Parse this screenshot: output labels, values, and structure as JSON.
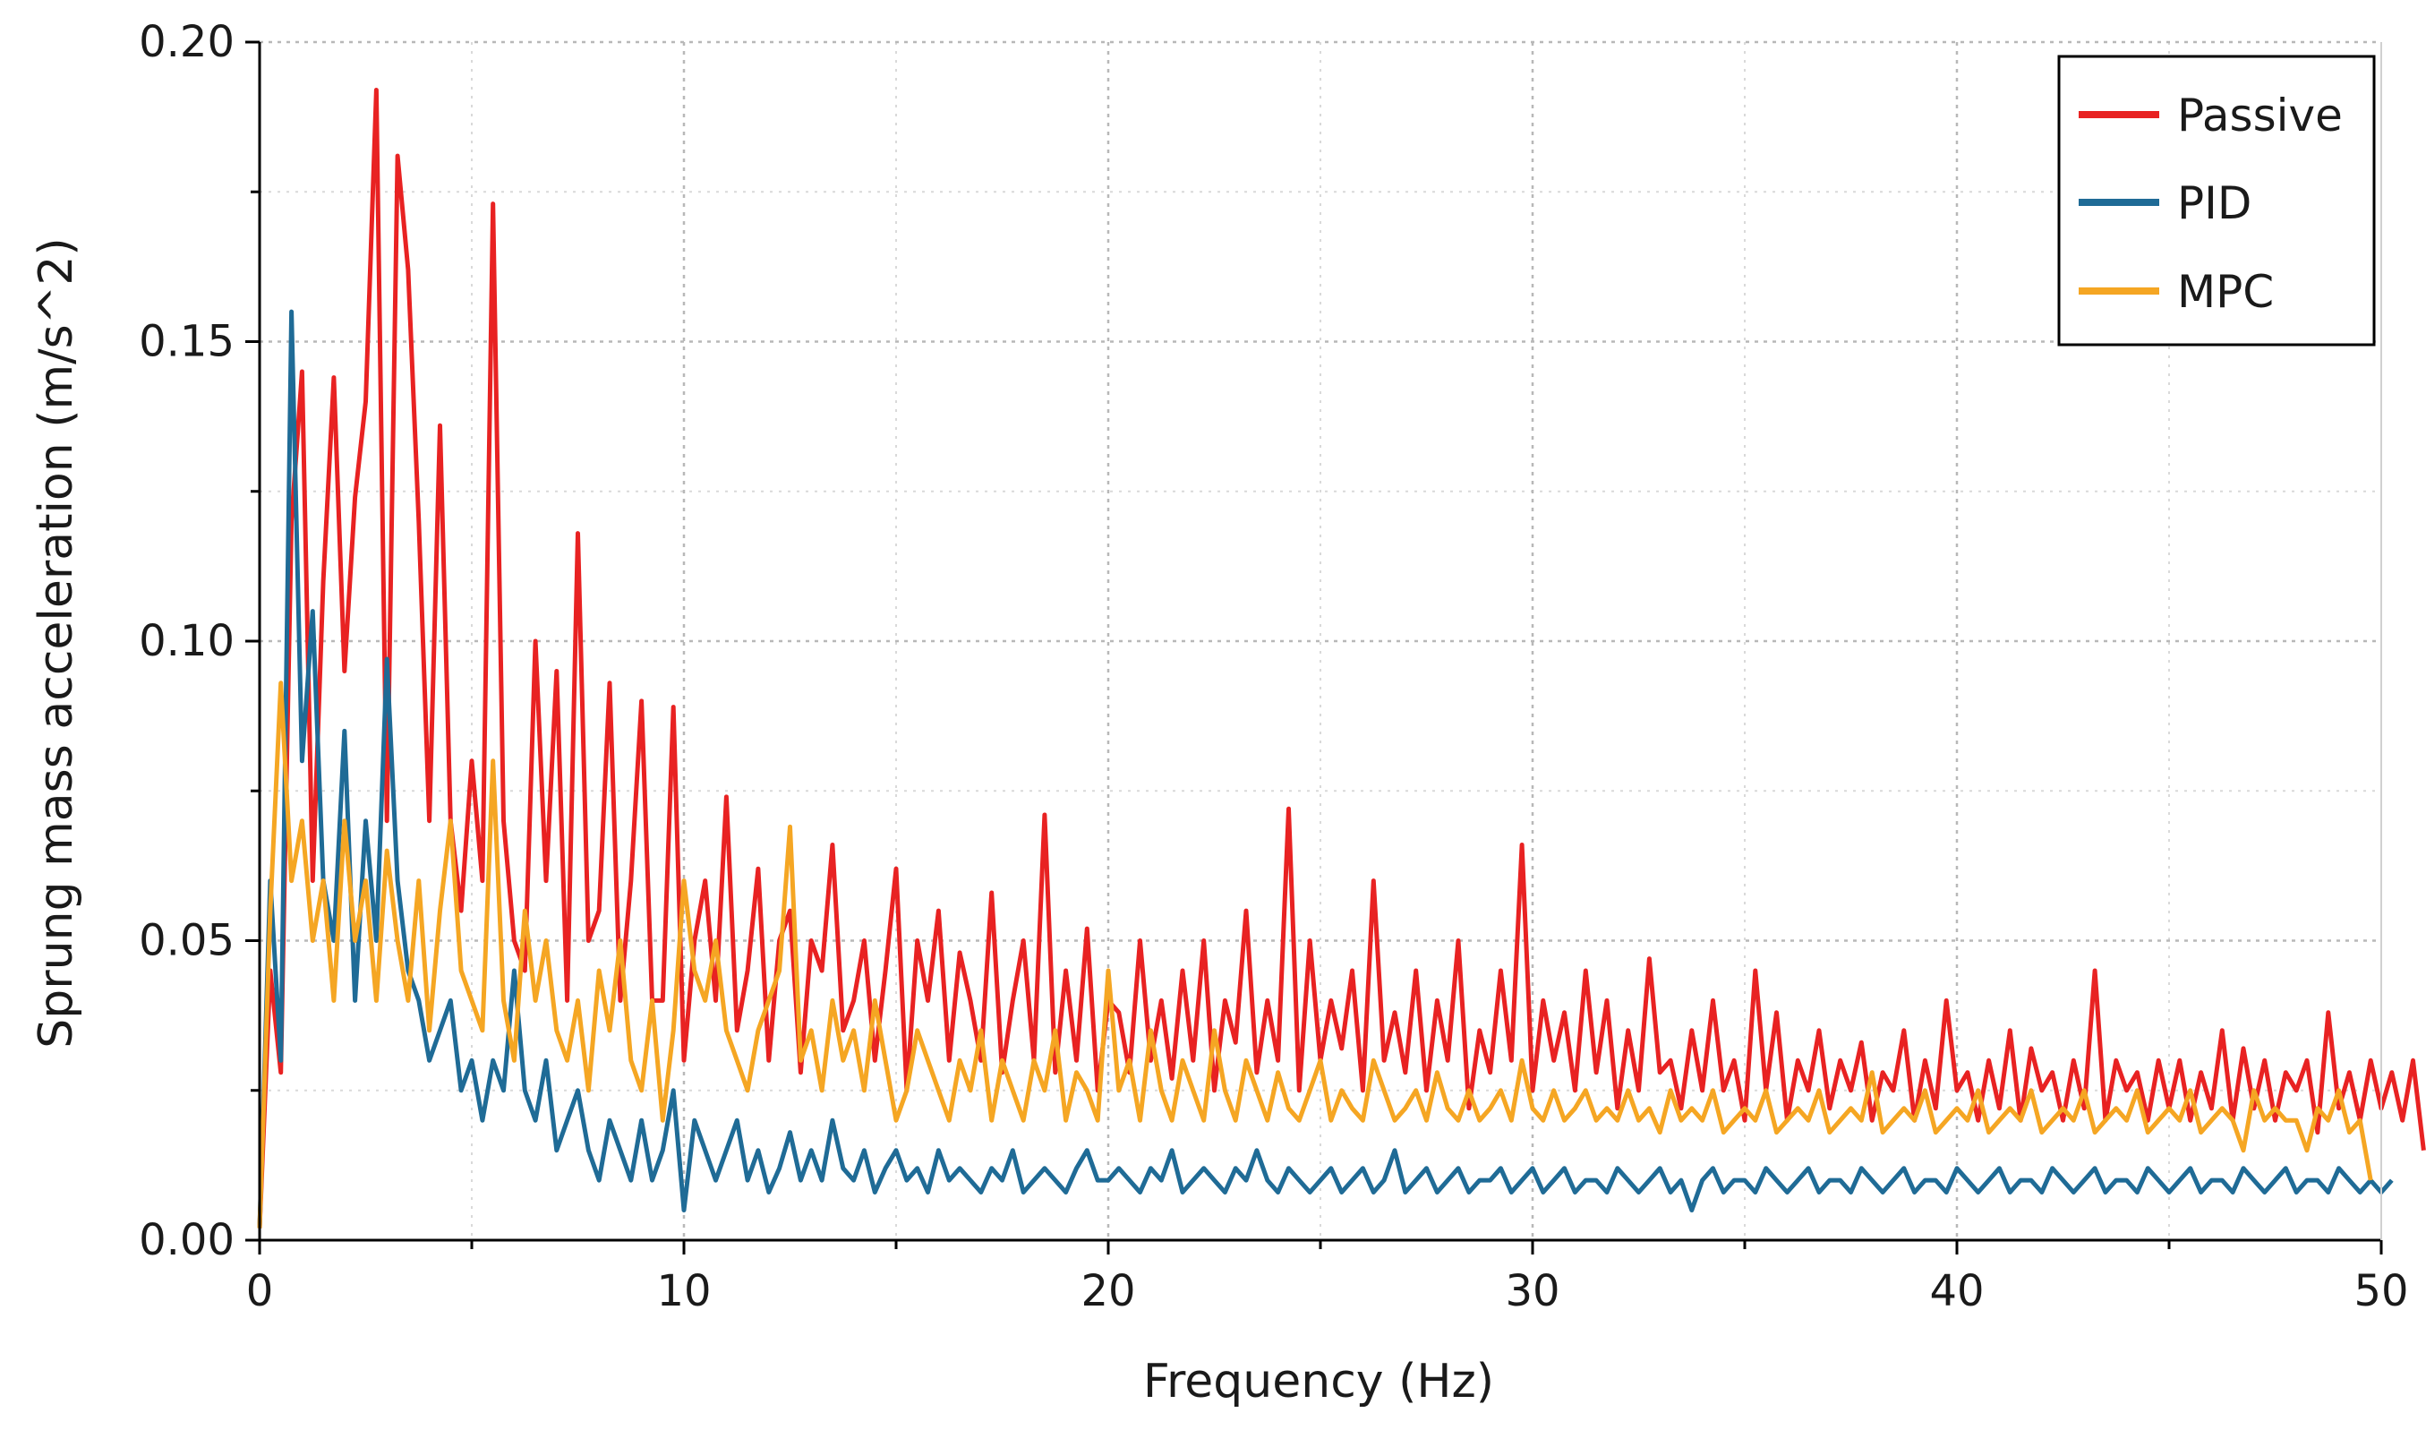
{
  "chart_data": {
    "type": "line",
    "title": "",
    "xlabel": "Frequency (Hz)",
    "ylabel": "Sprung mass acceleration (m/s^2)",
    "xlim": [
      0,
      50
    ],
    "ylim": [
      0,
      0.2
    ],
    "x_ticks": [
      "0",
      "10",
      "20",
      "30",
      "40",
      "50"
    ],
    "y_ticks": [
      "0.00",
      "0.05",
      "0.10",
      "0.15",
      "0.20"
    ],
    "grid": true,
    "legend_position": "top-right",
    "x_step": 0.25,
    "series": [
      {
        "name": "Passive",
        "color": "#e82222",
        "values": [
          0.002,
          0.045,
          0.028,
          0.12,
          0.145,
          0.06,
          0.11,
          0.144,
          0.095,
          0.124,
          0.14,
          0.192,
          0.07,
          0.181,
          0.162,
          0.12,
          0.07,
          0.136,
          0.07,
          0.055,
          0.08,
          0.06,
          0.173,
          0.07,
          0.05,
          0.045,
          0.1,
          0.06,
          0.095,
          0.04,
          0.118,
          0.05,
          0.055,
          0.093,
          0.04,
          0.06,
          0.09,
          0.04,
          0.04,
          0.089,
          0.03,
          0.05,
          0.06,
          0.04,
          0.074,
          0.035,
          0.045,
          0.062,
          0.03,
          0.05,
          0.055,
          0.028,
          0.05,
          0.045,
          0.066,
          0.035,
          0.04,
          0.05,
          0.03,
          0.045,
          0.062,
          0.025,
          0.05,
          0.04,
          0.055,
          0.03,
          0.048,
          0.04,
          0.03,
          0.058,
          0.028,
          0.04,
          0.05,
          0.03,
          0.071,
          0.028,
          0.045,
          0.03,
          0.052,
          0.025,
          0.04,
          0.038,
          0.028,
          0.05,
          0.03,
          0.04,
          0.027,
          0.045,
          0.03,
          0.05,
          0.025,
          0.04,
          0.033,
          0.055,
          0.028,
          0.04,
          0.03,
          0.072,
          0.025,
          0.05,
          0.03,
          0.04,
          0.032,
          0.045,
          0.025,
          0.06,
          0.03,
          0.038,
          0.028,
          0.045,
          0.025,
          0.04,
          0.03,
          0.05,
          0.022,
          0.035,
          0.028,
          0.045,
          0.03,
          0.066,
          0.025,
          0.04,
          0.03,
          0.038,
          0.025,
          0.045,
          0.028,
          0.04,
          0.022,
          0.035,
          0.025,
          0.047,
          0.028,
          0.03,
          0.022,
          0.035,
          0.025,
          0.04,
          0.025,
          0.03,
          0.02,
          0.045,
          0.025,
          0.038,
          0.02,
          0.03,
          0.025,
          0.035,
          0.022,
          0.03,
          0.025,
          0.033,
          0.02,
          0.028,
          0.025,
          0.035,
          0.02,
          0.03,
          0.022,
          0.04,
          0.025,
          0.028,
          0.02,
          0.03,
          0.022,
          0.035,
          0.02,
          0.032,
          0.025,
          0.028,
          0.02,
          0.03,
          0.022,
          0.045,
          0.02,
          0.03,
          0.025,
          0.028,
          0.02,
          0.03,
          0.022,
          0.03,
          0.02,
          0.028,
          0.022,
          0.035,
          0.02,
          0.032,
          0.022,
          0.03,
          0.02,
          0.028,
          0.025,
          0.03,
          0.018,
          0.038,
          0.022,
          0.028,
          0.02,
          0.03,
          0.022,
          0.028,
          0.02,
          0.03,
          0.015
        ]
      },
      {
        "name": "PID",
        "color": "#1f6b96",
        "values": [
          0.002,
          0.06,
          0.03,
          0.155,
          0.08,
          0.105,
          0.06,
          0.05,
          0.085,
          0.04,
          0.07,
          0.05,
          0.097,
          0.06,
          0.045,
          0.04,
          0.03,
          0.035,
          0.04,
          0.025,
          0.03,
          0.02,
          0.03,
          0.025,
          0.045,
          0.025,
          0.02,
          0.03,
          0.015,
          0.02,
          0.025,
          0.015,
          0.01,
          0.02,
          0.015,
          0.01,
          0.02,
          0.01,
          0.015,
          0.025,
          0.005,
          0.02,
          0.015,
          0.01,
          0.015,
          0.02,
          0.01,
          0.015,
          0.008,
          0.012,
          0.018,
          0.01,
          0.015,
          0.01,
          0.02,
          0.012,
          0.01,
          0.015,
          0.008,
          0.012,
          0.015,
          0.01,
          0.012,
          0.008,
          0.015,
          0.01,
          0.012,
          0.01,
          0.008,
          0.012,
          0.01,
          0.015,
          0.008,
          0.01,
          0.012,
          0.01,
          0.008,
          0.012,
          0.015,
          0.01,
          0.01,
          0.012,
          0.01,
          0.008,
          0.012,
          0.01,
          0.015,
          0.008,
          0.01,
          0.012,
          0.01,
          0.008,
          0.012,
          0.01,
          0.015,
          0.01,
          0.008,
          0.012,
          0.01,
          0.008,
          0.01,
          0.012,
          0.008,
          0.01,
          0.012,
          0.008,
          0.01,
          0.015,
          0.008,
          0.01,
          0.012,
          0.008,
          0.01,
          0.012,
          0.008,
          0.01,
          0.01,
          0.012,
          0.008,
          0.01,
          0.012,
          0.008,
          0.01,
          0.012,
          0.008,
          0.01,
          0.01,
          0.008,
          0.012,
          0.01,
          0.008,
          0.01,
          0.012,
          0.008,
          0.01,
          0.005,
          0.01,
          0.012,
          0.008,
          0.01,
          0.01,
          0.008,
          0.012,
          0.01,
          0.008,
          0.01,
          0.012,
          0.008,
          0.01,
          0.01,
          0.008,
          0.012,
          0.01,
          0.008,
          0.01,
          0.012,
          0.008,
          0.01,
          0.01,
          0.008,
          0.012,
          0.01,
          0.008,
          0.01,
          0.012,
          0.008,
          0.01,
          0.01,
          0.008,
          0.012,
          0.01,
          0.008,
          0.01,
          0.012,
          0.008,
          0.01,
          0.01,
          0.008,
          0.012,
          0.01,
          0.008,
          0.01,
          0.012,
          0.008,
          0.01,
          0.01,
          0.008,
          0.012,
          0.01,
          0.008,
          0.01,
          0.012,
          0.008,
          0.01,
          0.01,
          0.008,
          0.012,
          0.01,
          0.008,
          0.01,
          0.008,
          0.01
        ]
      },
      {
        "name": "MPC",
        "color": "#f5a623",
        "values": [
          0.002,
          0.055,
          0.093,
          0.06,
          0.07,
          0.05,
          0.06,
          0.04,
          0.07,
          0.05,
          0.06,
          0.04,
          0.065,
          0.05,
          0.04,
          0.06,
          0.035,
          0.055,
          0.07,
          0.045,
          0.04,
          0.035,
          0.08,
          0.04,
          0.03,
          0.055,
          0.04,
          0.05,
          0.035,
          0.03,
          0.04,
          0.025,
          0.045,
          0.035,
          0.05,
          0.03,
          0.025,
          0.04,
          0.02,
          0.035,
          0.06,
          0.045,
          0.04,
          0.05,
          0.035,
          0.03,
          0.025,
          0.035,
          0.04,
          0.045,
          0.069,
          0.03,
          0.035,
          0.025,
          0.04,
          0.03,
          0.035,
          0.025,
          0.04,
          0.03,
          0.02,
          0.025,
          0.035,
          0.03,
          0.025,
          0.02,
          0.03,
          0.025,
          0.035,
          0.02,
          0.03,
          0.025,
          0.02,
          0.03,
          0.025,
          0.035,
          0.02,
          0.028,
          0.025,
          0.02,
          0.045,
          0.025,
          0.03,
          0.02,
          0.035,
          0.025,
          0.02,
          0.03,
          0.025,
          0.02,
          0.035,
          0.025,
          0.02,
          0.03,
          0.025,
          0.02,
          0.028,
          0.022,
          0.02,
          0.025,
          0.03,
          0.02,
          0.025,
          0.022,
          0.02,
          0.03,
          0.025,
          0.02,
          0.022,
          0.025,
          0.02,
          0.028,
          0.022,
          0.02,
          0.025,
          0.02,
          0.022,
          0.025,
          0.02,
          0.03,
          0.022,
          0.02,
          0.025,
          0.02,
          0.022,
          0.025,
          0.02,
          0.022,
          0.02,
          0.025,
          0.02,
          0.022,
          0.018,
          0.025,
          0.02,
          0.022,
          0.02,
          0.025,
          0.018,
          0.02,
          0.022,
          0.02,
          0.025,
          0.018,
          0.02,
          0.022,
          0.02,
          0.025,
          0.018,
          0.02,
          0.022,
          0.02,
          0.028,
          0.018,
          0.02,
          0.022,
          0.02,
          0.025,
          0.018,
          0.02,
          0.022,
          0.02,
          0.025,
          0.018,
          0.02,
          0.022,
          0.02,
          0.025,
          0.018,
          0.02,
          0.022,
          0.02,
          0.025,
          0.018,
          0.02,
          0.022,
          0.02,
          0.025,
          0.018,
          0.02,
          0.022,
          0.02,
          0.025,
          0.018,
          0.02,
          0.022,
          0.02,
          0.015,
          0.025,
          0.02,
          0.022,
          0.02,
          0.02,
          0.015,
          0.022,
          0.02,
          0.025,
          0.018,
          0.02,
          0.01
        ]
      }
    ]
  }
}
